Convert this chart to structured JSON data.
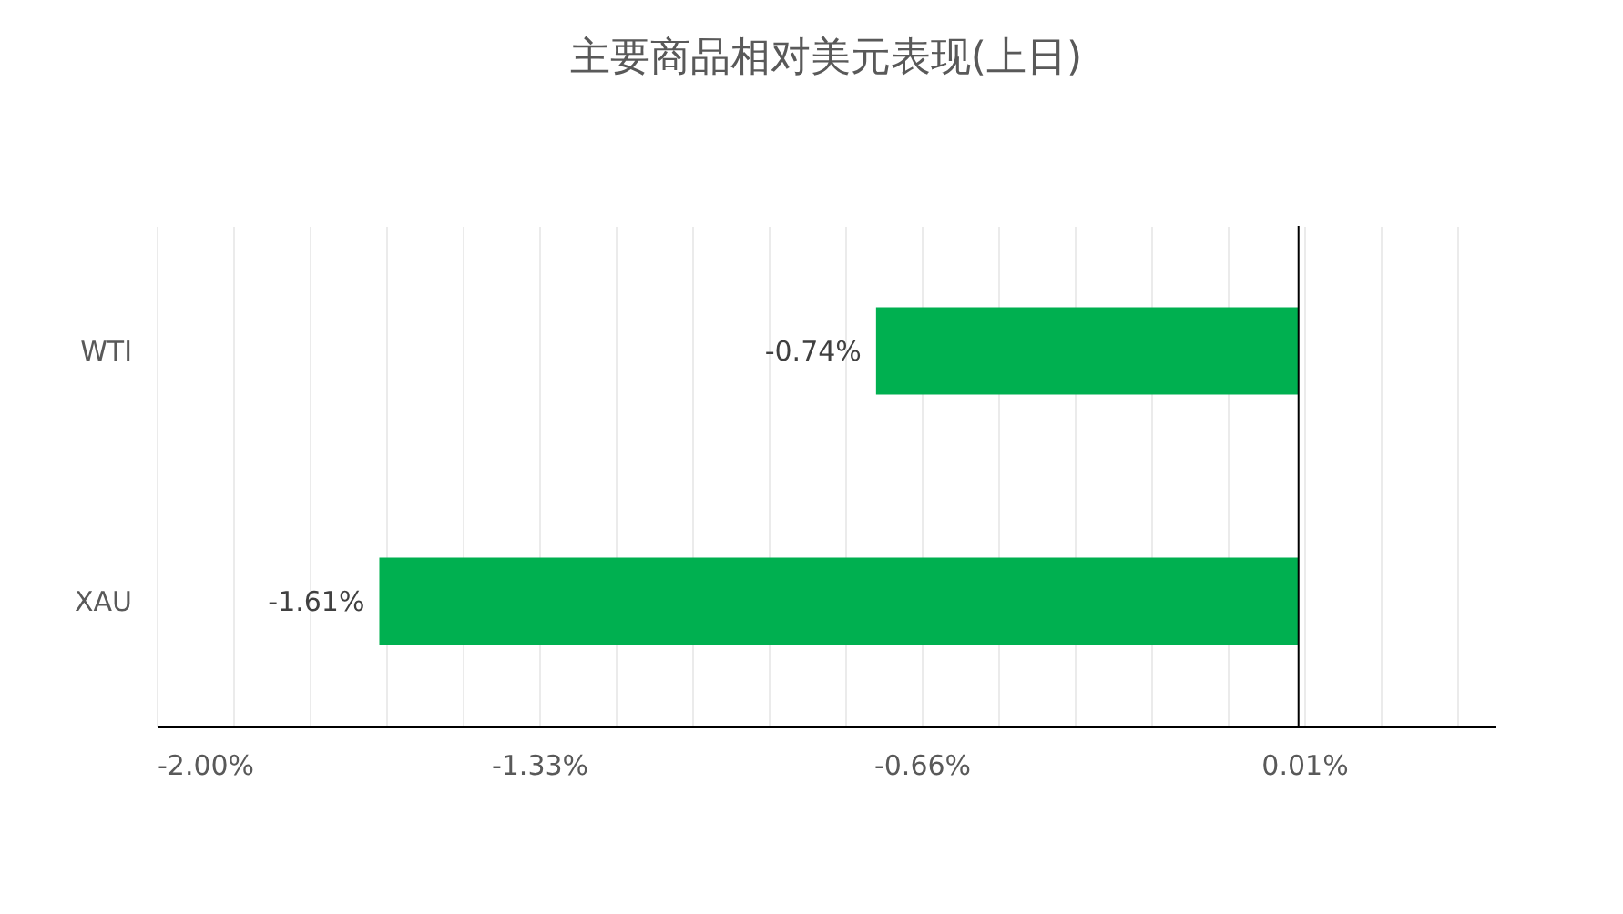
{
  "chart_data": {
    "type": "bar",
    "orientation": "horizontal",
    "title": "主要商品相对美元表现(上日)",
    "categories": [
      "WTI",
      "XAU"
    ],
    "series": [
      {
        "color": "#00b050",
        "values": [
          -0.74,
          -1.61
        ]
      }
    ],
    "value_labels": [
      "-0.74%",
      "-1.61%"
    ],
    "xlim": [
      -2.0,
      0.345
    ],
    "xticks": [
      {
        "value": -2.0,
        "label": "-2.00%"
      },
      {
        "value": -1.866,
        "label": null
      },
      {
        "value": -1.732,
        "label": null
      },
      {
        "value": -1.598,
        "label": null
      },
      {
        "value": -1.464,
        "label": null
      },
      {
        "value": -1.33,
        "label": "-1.33%"
      },
      {
        "value": -1.196,
        "label": null
      },
      {
        "value": -1.062,
        "label": null
      },
      {
        "value": -0.928,
        "label": null
      },
      {
        "value": -0.794,
        "label": null
      },
      {
        "value": -0.66,
        "label": "-0.66%"
      },
      {
        "value": -0.526,
        "label": null
      },
      {
        "value": -0.392,
        "label": null
      },
      {
        "value": -0.258,
        "label": null
      },
      {
        "value": -0.124,
        "label": null
      },
      {
        "value": 0.01,
        "label": "0.01%"
      },
      {
        "value": 0.144,
        "label": null
      },
      {
        "value": 0.278,
        "label": null
      }
    ],
    "ref_lines": [
      {
        "axis": "x",
        "value": 0,
        "label": null,
        "color": "#000000"
      }
    ],
    "grid": "x"
  }
}
